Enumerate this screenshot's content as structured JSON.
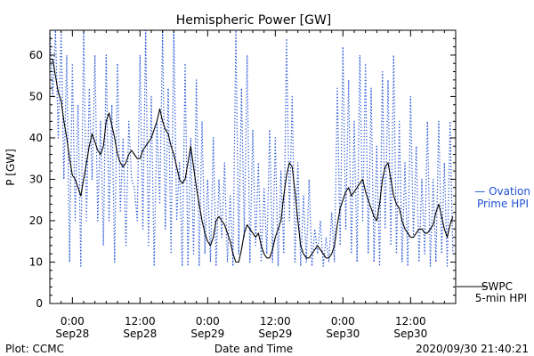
{
  "chart_data": {
    "type": "line",
    "title": "Hemispheric Power [GW]",
    "ylabel": "P [GW]",
    "xlabel": "Date and Time",
    "ylim": [
      0,
      66
    ],
    "xlim_hours": [
      -4,
      68
    ],
    "yticks": [
      0,
      10,
      20,
      30,
      40,
      50,
      60
    ],
    "xticks": [
      {
        "t": 0,
        "line1": "0:00",
        "line2": "Sep28"
      },
      {
        "t": 12,
        "line1": "12:00",
        "line2": "Sep28"
      },
      {
        "t": 24,
        "line1": "0:00",
        "line2": "Sep29"
      },
      {
        "t": 36,
        "line1": "12:00",
        "line2": "Sep29"
      },
      {
        "t": 48,
        "line1": "0:00",
        "line2": "Sep30"
      },
      {
        "t": 60,
        "line1": "12:00",
        "line2": "Sep30"
      }
    ],
    "x_unit": "hours from 2020-09-28 00:00",
    "series": [
      {
        "name": "SWPC 5-min HPI",
        "legend_lines": [
          "SWPC",
          "5-min HPI"
        ],
        "color": "#000000",
        "style": "solid",
        "points": [
          [
            -4,
            59
          ],
          [
            -3.5,
            59
          ],
          [
            -3,
            55
          ],
          [
            -2.5,
            51
          ],
          [
            -2,
            49
          ],
          [
            -1.5,
            44
          ],
          [
            -1,
            40
          ],
          [
            -0.5,
            35
          ],
          [
            0,
            31
          ],
          [
            0.5,
            30
          ],
          [
            1,
            28
          ],
          [
            1.5,
            26
          ],
          [
            2,
            30
          ],
          [
            2.5,
            34
          ],
          [
            3,
            38
          ],
          [
            3.5,
            41
          ],
          [
            4,
            39
          ],
          [
            4.5,
            37
          ],
          [
            5,
            36
          ],
          [
            5.5,
            38
          ],
          [
            6,
            44
          ],
          [
            6.5,
            46
          ],
          [
            7,
            43
          ],
          [
            7.5,
            40
          ],
          [
            8,
            36
          ],
          [
            8.5,
            34
          ],
          [
            9,
            33
          ],
          [
            9.5,
            34
          ],
          [
            10,
            36
          ],
          [
            10.5,
            37
          ],
          [
            11,
            36
          ],
          [
            11.5,
            35
          ],
          [
            12,
            35
          ],
          [
            12.5,
            37
          ],
          [
            13,
            38
          ],
          [
            13.5,
            39
          ],
          [
            14,
            40
          ],
          [
            14.5,
            42
          ],
          [
            15,
            44
          ],
          [
            15.5,
            47
          ],
          [
            16,
            44
          ],
          [
            16.5,
            42
          ],
          [
            17,
            41
          ],
          [
            17.5,
            38
          ],
          [
            18,
            36
          ],
          [
            18.5,
            33
          ],
          [
            19,
            30
          ],
          [
            19.5,
            29
          ],
          [
            20,
            30
          ],
          [
            20.5,
            34
          ],
          [
            21,
            38
          ],
          [
            21.5,
            33
          ],
          [
            22,
            28
          ],
          [
            22.5,
            24
          ],
          [
            23,
            20
          ],
          [
            23.5,
            17
          ],
          [
            24,
            15
          ],
          [
            24.5,
            14
          ],
          [
            25,
            16
          ],
          [
            25.5,
            20
          ],
          [
            26,
            21
          ],
          [
            26.5,
            20
          ],
          [
            27,
            19
          ],
          [
            27.5,
            17
          ],
          [
            28,
            15
          ],
          [
            28.5,
            12
          ],
          [
            29,
            10
          ],
          [
            29.5,
            10
          ],
          [
            30,
            13
          ],
          [
            30.5,
            17
          ],
          [
            31,
            19
          ],
          [
            31.5,
            18
          ],
          [
            32,
            17
          ],
          [
            32.5,
            16
          ],
          [
            33,
            17
          ],
          [
            33.5,
            14
          ],
          [
            34,
            12
          ],
          [
            34.5,
            11
          ],
          [
            35,
            11
          ],
          [
            35.5,
            13
          ],
          [
            36,
            16
          ],
          [
            36.5,
            18
          ],
          [
            37,
            20
          ],
          [
            37.5,
            26
          ],
          [
            38,
            31
          ],
          [
            38.5,
            34
          ],
          [
            39,
            33
          ],
          [
            39.5,
            27
          ],
          [
            40,
            20
          ],
          [
            40.5,
            14
          ],
          [
            41,
            12
          ],
          [
            41.5,
            11
          ],
          [
            42,
            11
          ],
          [
            42.5,
            12
          ],
          [
            43,
            13
          ],
          [
            43.5,
            14
          ],
          [
            44,
            13
          ],
          [
            44.5,
            12
          ],
          [
            45,
            11
          ],
          [
            45.5,
            11
          ],
          [
            46,
            12
          ],
          [
            46.5,
            14
          ],
          [
            47,
            19
          ],
          [
            47.5,
            23
          ],
          [
            48,
            25
          ],
          [
            48.5,
            27
          ],
          [
            49,
            28
          ],
          [
            49.5,
            26
          ],
          [
            50,
            27
          ],
          [
            50.5,
            28
          ],
          [
            51,
            29
          ],
          [
            51.5,
            30
          ],
          [
            52,
            27
          ],
          [
            52.5,
            25
          ],
          [
            53,
            23
          ],
          [
            53.5,
            21
          ],
          [
            54,
            20
          ],
          [
            54.5,
            24
          ],
          [
            55,
            30
          ],
          [
            55.5,
            33
          ],
          [
            56,
            34
          ],
          [
            56.5,
            30
          ],
          [
            57,
            26
          ],
          [
            57.5,
            24
          ],
          [
            58,
            23
          ],
          [
            58.5,
            20
          ],
          [
            59,
            18
          ],
          [
            59.5,
            17
          ],
          [
            60,
            16
          ],
          [
            60.5,
            16
          ],
          [
            61,
            17
          ],
          [
            61.5,
            18
          ],
          [
            62,
            18
          ],
          [
            62.5,
            17
          ],
          [
            63,
            17
          ],
          [
            63.5,
            18
          ],
          [
            64,
            19
          ],
          [
            64.5,
            22
          ],
          [
            65,
            24
          ],
          [
            65.5,
            21
          ],
          [
            66,
            18
          ],
          [
            66.5,
            16
          ],
          [
            67,
            19
          ],
          [
            67.5,
            21
          ]
        ]
      },
      {
        "name": "Ovation Prime HPI",
        "legend_lines": [
          "— Ovation",
          "Prime HPI"
        ],
        "color": "#1f4fd6",
        "style": "dotted",
        "points": [
          [
            -4,
            66
          ],
          [
            -3.5,
            50
          ],
          [
            -3,
            66
          ],
          [
            -2.5,
            40
          ],
          [
            -2,
            66
          ],
          [
            -1.5,
            30
          ],
          [
            -1,
            60
          ],
          [
            -0.5,
            10
          ],
          [
            0,
            58
          ],
          [
            0.5,
            20
          ],
          [
            1,
            48
          ],
          [
            1.5,
            9
          ],
          [
            2,
            66
          ],
          [
            2.5,
            20
          ],
          [
            3,
            52
          ],
          [
            3.5,
            30
          ],
          [
            4,
            60
          ],
          [
            4.5,
            20
          ],
          [
            5,
            44
          ],
          [
            5.5,
            14
          ],
          [
            6,
            60
          ],
          [
            6.5,
            20
          ],
          [
            7,
            48
          ],
          [
            7.5,
            10
          ],
          [
            8,
            58
          ],
          [
            8.5,
            22
          ],
          [
            9,
            40
          ],
          [
            9.5,
            14
          ],
          [
            10,
            44
          ],
          [
            10.5,
            30
          ],
          [
            11,
            28
          ],
          [
            11.5,
            20
          ],
          [
            12,
            60
          ],
          [
            12.5,
            18
          ],
          [
            13,
            66
          ],
          [
            13.5,
            14
          ],
          [
            14,
            50
          ],
          [
            14.5,
            9
          ],
          [
            15,
            44
          ],
          [
            15.5,
            24
          ],
          [
            16,
            66
          ],
          [
            16.5,
            18
          ],
          [
            17,
            52
          ],
          [
            17.5,
            12
          ],
          [
            18,
            66
          ],
          [
            18.5,
            20
          ],
          [
            19,
            34
          ],
          [
            19.5,
            9
          ],
          [
            20,
            58
          ],
          [
            20.5,
            9
          ],
          [
            21,
            40
          ],
          [
            21.5,
            12
          ],
          [
            22,
            54
          ],
          [
            22.5,
            9
          ],
          [
            23,
            44
          ],
          [
            23.5,
            12
          ],
          [
            24,
            30
          ],
          [
            24.5,
            10
          ],
          [
            25,
            40
          ],
          [
            25.5,
            9
          ],
          [
            26,
            30
          ],
          [
            26.5,
            16
          ],
          [
            27,
            34
          ],
          [
            27.5,
            10
          ],
          [
            28,
            26
          ],
          [
            28.5,
            9
          ],
          [
            29,
            66
          ],
          [
            29.5,
            12
          ],
          [
            30,
            52
          ],
          [
            30.5,
            16
          ],
          [
            31,
            60
          ],
          [
            31.5,
            10
          ],
          [
            32,
            42
          ],
          [
            32.5,
            14
          ],
          [
            33,
            34
          ],
          [
            33.5,
            10
          ],
          [
            34,
            28
          ],
          [
            34.5,
            12
          ],
          [
            35,
            42
          ],
          [
            35.5,
            10
          ],
          [
            36,
            40
          ],
          [
            36.5,
            9
          ],
          [
            37,
            32
          ],
          [
            37.5,
            12
          ],
          [
            38,
            64
          ],
          [
            38.5,
            20
          ],
          [
            39,
            50
          ],
          [
            39.5,
            10
          ],
          [
            40,
            34
          ],
          [
            40.5,
            9
          ],
          [
            41,
            26
          ],
          [
            41.5,
            10
          ],
          [
            42,
            30
          ],
          [
            42.5,
            9
          ],
          [
            43,
            18
          ],
          [
            43.5,
            12
          ],
          [
            44,
            20
          ],
          [
            44.5,
            9
          ],
          [
            45,
            16
          ],
          [
            45.5,
            10
          ],
          [
            46,
            22
          ],
          [
            46.5,
            10
          ],
          [
            47,
            52
          ],
          [
            47.5,
            14
          ],
          [
            48,
            62
          ],
          [
            48.5,
            18
          ],
          [
            49,
            54
          ],
          [
            49.5,
            12
          ],
          [
            50,
            44
          ],
          [
            50.5,
            10
          ],
          [
            51,
            60
          ],
          [
            51.5,
            20
          ],
          [
            52,
            58
          ],
          [
            52.5,
            12
          ],
          [
            53,
            52
          ],
          [
            53.5,
            10
          ],
          [
            54,
            38
          ],
          [
            54.5,
            9
          ],
          [
            55,
            56
          ],
          [
            55.5,
            18
          ],
          [
            56,
            54
          ],
          [
            56.5,
            14
          ],
          [
            57,
            60
          ],
          [
            57.5,
            12
          ],
          [
            58,
            44
          ],
          [
            58.5,
            10
          ],
          [
            59,
            34
          ],
          [
            59.5,
            9
          ],
          [
            60,
            50
          ],
          [
            60.5,
            16
          ],
          [
            61,
            38
          ],
          [
            61.5,
            10
          ],
          [
            62,
            30
          ],
          [
            62.5,
            12
          ],
          [
            63,
            44
          ],
          [
            63.5,
            9
          ],
          [
            64,
            30
          ],
          [
            64.5,
            10
          ],
          [
            65,
            44
          ],
          [
            65.5,
            12
          ],
          [
            66,
            34
          ],
          [
            66.5,
            9
          ],
          [
            67,
            44
          ],
          [
            67.5,
            12
          ]
        ]
      }
    ]
  },
  "footer": {
    "left": "Plot: CCMC",
    "center": "Date and Time",
    "right": "2020/09/30 21:40:21"
  }
}
